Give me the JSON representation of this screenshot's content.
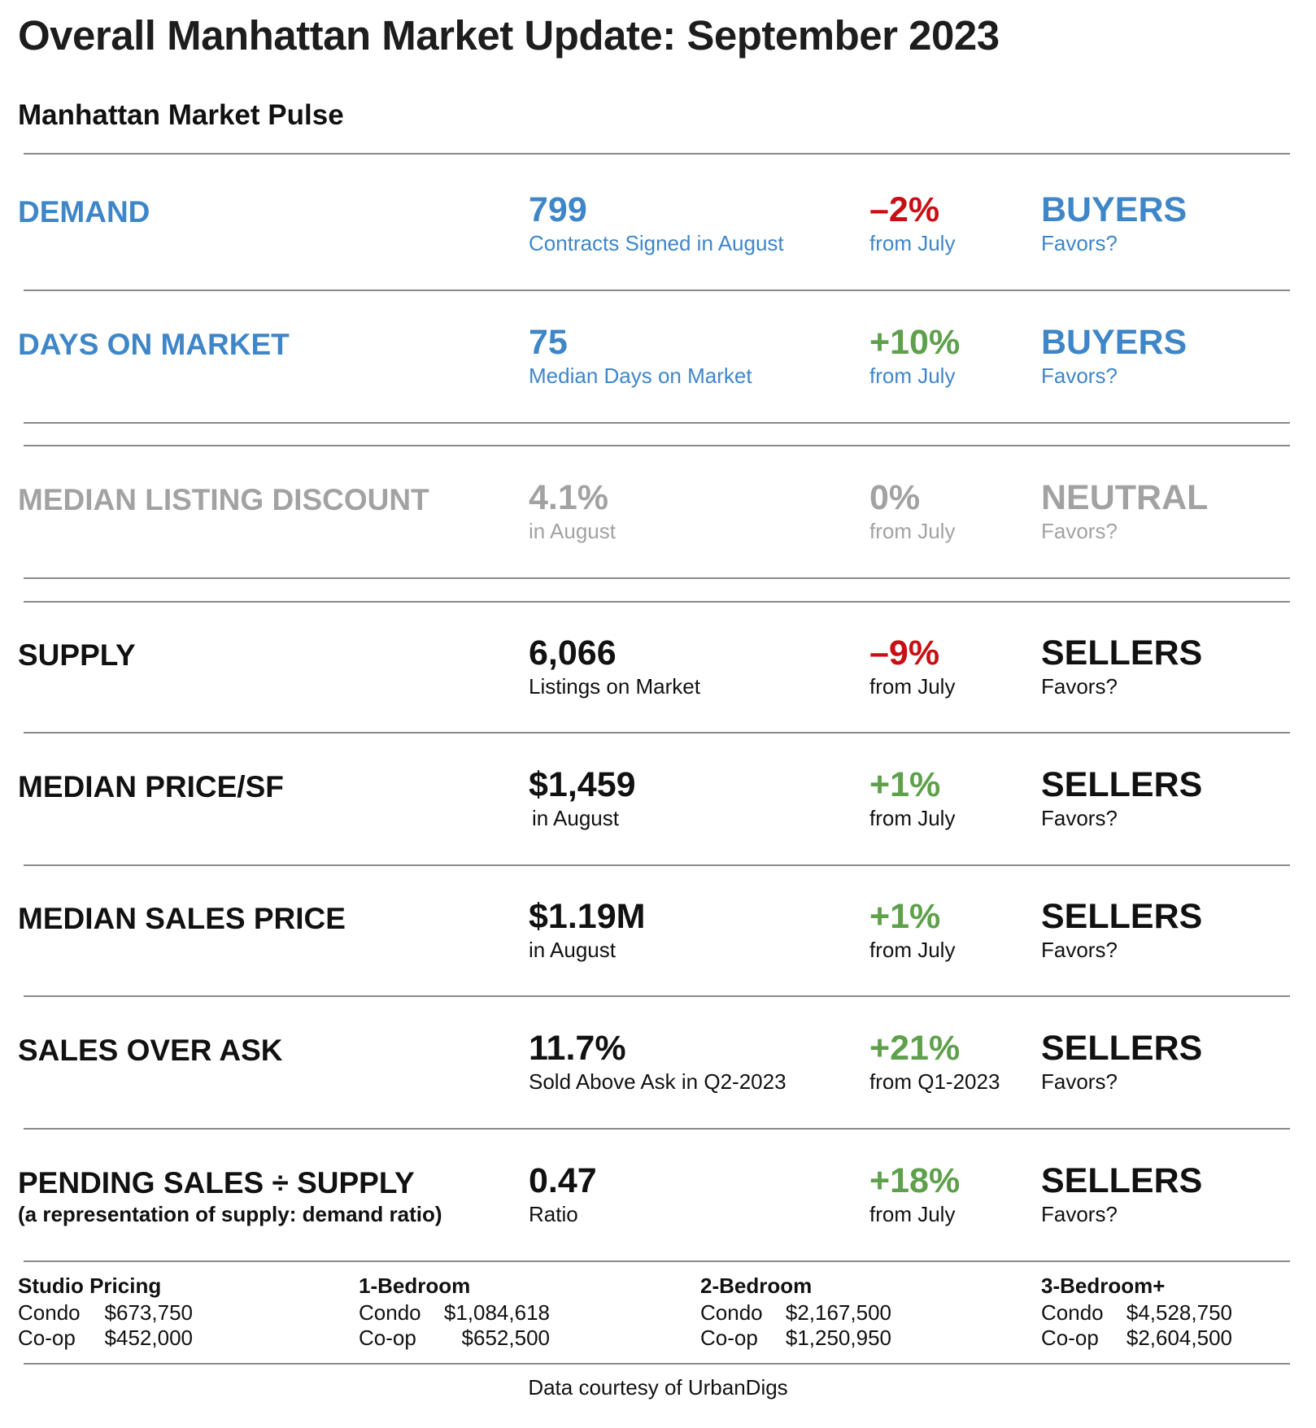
{
  "header": {
    "title": "Overall Manhattan Market Update: September 2023",
    "subtitle": "Manhattan Market Pulse"
  },
  "colors": {
    "blue": "#3f86c8",
    "gray": "#a2a2a2",
    "black": "#111111",
    "red": "#c80f14",
    "green": "#5ea04b"
  },
  "metrics": [
    {
      "label": "DEMAND",
      "value": "799",
      "desc": "Contracts Signed in August",
      "change": "–2%",
      "change_desc": "from July",
      "favors": "BUYERS",
      "favors_q": "Favors?"
    },
    {
      "label": "DAYS ON MARKET",
      "value": "75",
      "desc": "Median Days on Market",
      "change": "+10%",
      "change_desc": "from July",
      "favors": "BUYERS",
      "favors_q": "Favors?"
    },
    {
      "label": "MEDIAN LISTING DISCOUNT",
      "value": "4.1%",
      "desc": "in August",
      "change": "0%",
      "change_desc": "from July",
      "favors": "NEUTRAL",
      "favors_q": "Favors?"
    },
    {
      "label": "SUPPLY",
      "value": "6,066",
      "desc": "Listings on Market",
      "change": "–9%",
      "change_desc": "from July",
      "favors": "SELLERS",
      "favors_q": "Favors?"
    },
    {
      "label": "MEDIAN PRICE/SF",
      "value": "$1,459",
      "desc": "in August",
      "change": "+1%",
      "change_desc": "from July",
      "favors": "SELLERS",
      "favors_q": "Favors?"
    },
    {
      "label": "MEDIAN SALES PRICE",
      "value": "$1.19M",
      "desc": "in August",
      "change": "+1%",
      "change_desc": "from July",
      "favors": "SELLERS",
      "favors_q": "Favors?"
    },
    {
      "label": "SALES OVER ASK",
      "value": "11.7%",
      "desc": "Sold Above Ask in Q2-2023",
      "change": "+21%",
      "change_desc": "from Q1-2023",
      "favors": "SELLERS",
      "favors_q": "Favors?"
    },
    {
      "label_part1": "PENDING SALES",
      "label_symbol": "÷",
      "label_part2": "SUPPLY",
      "label_sub": "(a representation of supply: demand ratio)",
      "value": "0.47",
      "desc": "Ratio",
      "change": "+18%",
      "change_desc": "from July",
      "favors": "SELLERS",
      "favors_q": "Favors?"
    }
  ],
  "pricing": [
    {
      "heading": "Studio Pricing",
      "condo_label": "Condo",
      "condo_value": "$673,750",
      "coop_label": "Co-op",
      "coop_value": "$452,000"
    },
    {
      "heading": "1-Bedroom",
      "condo_label": "Condo",
      "condo_value": "$1,084,618",
      "coop_label": "Co-op",
      "coop_value": "$652,500"
    },
    {
      "heading": "2-Bedroom",
      "condo_label": "Condo",
      "condo_value": "$2,167,500",
      "coop_label": "Co-op",
      "coop_value": "$1,250,950"
    },
    {
      "heading": "3-Bedroom+",
      "condo_label": "Condo",
      "condo_value": "$4,528,750",
      "coop_label": "Co-op",
      "coop_value": "$2,604,500"
    }
  ],
  "footer": {
    "source": "Data courtesy of UrbanDigs"
  }
}
